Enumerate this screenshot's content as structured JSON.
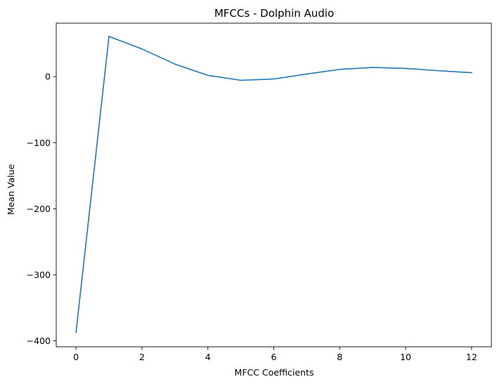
{
  "chart_data": {
    "type": "line",
    "title": "MFCCs - Dolphin Audio",
    "xlabel": "MFCC Coefficients",
    "ylabel": "Mean Value",
    "x": [
      0,
      1,
      2,
      3,
      4,
      5,
      6,
      7,
      8,
      9,
      10,
      11,
      12
    ],
    "series": [
      {
        "values": [
          -387,
          61,
          42,
          19,
          2,
          -5.5,
          -3.5,
          4,
          11,
          14,
          12.5,
          9,
          6
        ],
        "color": "#1f77b4"
      }
    ],
    "xlim": [
      -0.6,
      12.6
    ],
    "ylim": [
      -409,
      81
    ],
    "xticks": [
      0,
      2,
      4,
      6,
      8,
      10,
      12
    ],
    "xtick_labels": [
      "0",
      "2",
      "4",
      "6",
      "8",
      "10",
      "12"
    ],
    "yticks": [
      -400,
      -300,
      -200,
      -100,
      0
    ],
    "ytick_labels": [
      "−400",
      "−300",
      "−200",
      "−100",
      "0"
    ],
    "grid": false
  }
}
